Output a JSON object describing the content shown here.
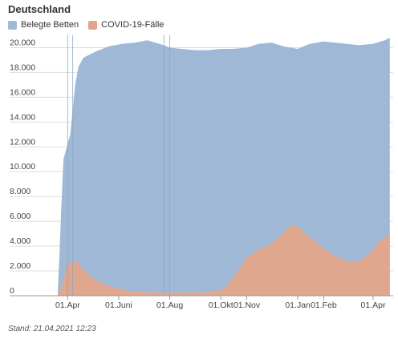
{
  "colors": {
    "beds": "#9fb8d6",
    "cases": "#e3a589",
    "grid": "#dddddd",
    "axis": "#999999"
  },
  "chart_data": {
    "type": "area",
    "title": "Deutschland",
    "legend": {
      "placement": "top-left"
    },
    "series": [
      {
        "name": "Belegte Betten",
        "x": [
          "2020-03-20",
          "2020-03-22",
          "2020-03-24",
          "2020-03-27",
          "2020-03-31",
          "2020-04-04",
          "2020-04-10",
          "2020-04-14",
          "2020-04-20",
          "2020-05-05",
          "2020-05-20",
          "2020-06-05",
          "2020-06-20",
          "2020-07-05",
          "2020-07-15",
          "2020-07-25",
          "2020-08-01",
          "2020-08-15",
          "2020-09-01",
          "2020-09-15",
          "2020-10-01",
          "2020-10-15",
          "2020-11-01",
          "2020-11-15",
          "2020-12-01",
          "2020-12-15",
          "2021-01-01",
          "2021-01-15",
          "2021-02-01",
          "2021-02-15",
          "2021-03-01",
          "2021-03-15",
          "2021-04-01",
          "2021-04-10",
          "2021-04-15",
          "2021-04-21"
        ],
        "y": [
          0,
          3000,
          6500,
          11000,
          12000,
          13000,
          17000,
          18500,
          19200,
          19700,
          20100,
          20300,
          20400,
          20600,
          20400,
          20200,
          20000,
          19900,
          19800,
          19800,
          19900,
          19900,
          20000,
          20300,
          20400,
          20100,
          19900,
          20300,
          20500,
          20400,
          20300,
          20200,
          20300,
          20500,
          20600,
          20800
        ]
      },
      {
        "name": "COVID-19-Fälle",
        "x": [
          "2020-03-20",
          "2020-03-24",
          "2020-03-28",
          "2020-04-01",
          "2020-04-06",
          "2020-04-12",
          "2020-04-20",
          "2020-05-01",
          "2020-05-15",
          "2020-06-01",
          "2020-06-15",
          "2020-07-01",
          "2020-07-15",
          "2020-08-01",
          "2020-08-15",
          "2020-09-01",
          "2020-09-15",
          "2020-10-01",
          "2020-10-10",
          "2020-10-20",
          "2020-11-01",
          "2020-11-15",
          "2020-12-01",
          "2020-12-15",
          "2020-12-25",
          "2021-01-01",
          "2021-01-10",
          "2021-01-20",
          "2021-02-01",
          "2021-02-15",
          "2021-03-01",
          "2021-03-10",
          "2021-03-20",
          "2021-04-01",
          "2021-04-10",
          "2021-04-21"
        ],
        "y": [
          0,
          600,
          1700,
          2500,
          2800,
          2700,
          2100,
          1400,
          900,
          550,
          380,
          300,
          260,
          230,
          230,
          240,
          300,
          450,
          900,
          1900,
          3100,
          3700,
          4200,
          5100,
          5700,
          5600,
          5000,
          4500,
          3800,
          3200,
          2800,
          2700,
          3000,
          3700,
          4500,
          4900
        ]
      }
    ],
    "ylim": [
      0,
      21000
    ],
    "yticks": [
      0,
      2000,
      4000,
      6000,
      8000,
      10000,
      12000,
      14000,
      16000,
      18000,
      20000
    ],
    "ytick_labels": [
      "0",
      "2.000",
      "4.000",
      "6.000",
      "8.000",
      "10.000",
      "12.000",
      "14.000",
      "16.000",
      "18.000",
      "20.000"
    ],
    "xlim": [
      "2020-03-01",
      "2021-04-25"
    ],
    "xticks": [
      "2020-04-01",
      "2020-06-01",
      "2020-08-01",
      "2020-10-01",
      "2020-11-01",
      "2021-01-01",
      "2021-02-01",
      "2021-04-01"
    ],
    "xtick_labels": [
      "01.Apr",
      "01.Juni",
      "01.Aug",
      "01.Okt",
      "01.Nov",
      "01.Jan",
      "01.Feb",
      "01.Apr"
    ],
    "grid": true,
    "marker_lines": [
      "2020-04-01",
      "2020-04-07",
      "2020-07-25",
      "2020-08-01"
    ]
  },
  "footer": {
    "stand": "Stand: 21.04.2021 12:23"
  }
}
